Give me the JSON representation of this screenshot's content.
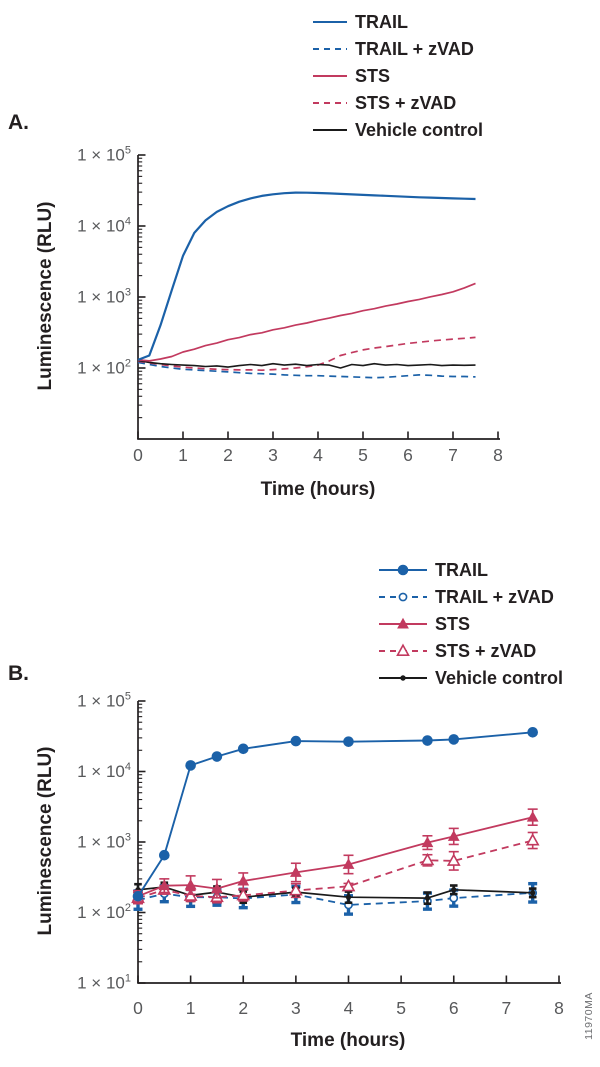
{
  "figure": {
    "panel_a_label": "A.",
    "panel_b_label": "B.",
    "watermark": "11970MA"
  },
  "colors": {
    "blue": "#1B61A8",
    "crimson": "#C23A5F",
    "black": "#1A1A1A",
    "axis": "#231f20",
    "tick_text": "#58595B"
  },
  "chart_data": [
    {
      "id": "A",
      "type": "line",
      "xlabel": "Time (hours)",
      "ylabel": "Luminescence (RLU)",
      "xlim": [
        0,
        8
      ],
      "ylim": [
        10,
        100000
      ],
      "x_ticks": [
        0,
        1,
        2,
        3,
        4,
        5,
        6,
        7,
        8
      ],
      "y_ticks": [
        {
          "base": "1 × 10",
          "exp": "5",
          "value": 100000
        },
        {
          "base": "1 × 10",
          "exp": "4",
          "value": 10000
        },
        {
          "base": "1 × 10",
          "exp": "3",
          "value": 1000
        },
        {
          "base": "1 × 10",
          "exp": "2",
          "value": 100
        }
      ],
      "legend": [
        {
          "label": "TRAIL",
          "color": "blue",
          "dash": false,
          "marker": "none"
        },
        {
          "label": "TRAIL + zVAD",
          "color": "blue",
          "dash": true,
          "marker": "none"
        },
        {
          "label": "STS",
          "color": "crimson",
          "dash": false,
          "marker": "none"
        },
        {
          "label": "STS + zVAD",
          "color": "crimson",
          "dash": true,
          "marker": "none"
        },
        {
          "label": "Vehicle control",
          "color": "black",
          "dash": false,
          "marker": "none"
        }
      ],
      "series": [
        {
          "name": "TRAIL + zVAD",
          "color": "blue",
          "dash": true,
          "lw": 1.7,
          "marker": "none",
          "x": [
            0,
            0.25,
            0.5,
            0.75,
            1,
            1.25,
            1.5,
            1.75,
            2,
            2.25,
            2.5,
            2.75,
            3,
            3.25,
            3.5,
            3.75,
            4,
            4.25,
            4.5,
            4.75,
            5,
            5.25,
            5.5,
            5.75,
            6,
            6.25,
            6.5,
            6.75,
            7,
            7.25,
            7.5
          ],
          "y": [
            120,
            112,
            105,
            100,
            96,
            94,
            92,
            90,
            88,
            86,
            84,
            83,
            82,
            80,
            79,
            78,
            78,
            77,
            76,
            75,
            74,
            73,
            74,
            76,
            78,
            80,
            79,
            77,
            76,
            76,
            75
          ]
        },
        {
          "name": "STS + zVAD",
          "color": "crimson",
          "dash": true,
          "lw": 1.7,
          "marker": "none",
          "x": [
            0,
            0.25,
            0.5,
            0.75,
            1,
            1.25,
            1.5,
            1.75,
            2,
            2.25,
            2.5,
            2.75,
            3,
            3.25,
            3.5,
            3.75,
            4,
            4.25,
            4.5,
            4.75,
            5,
            5.25,
            5.5,
            5.75,
            6,
            6.25,
            6.5,
            6.75,
            7,
            7.25,
            7.5
          ],
          "y": [
            125,
            118,
            112,
            107,
            103,
            100,
            98,
            96,
            95,
            94,
            94,
            93,
            95,
            97,
            100,
            104,
            110,
            126,
            150,
            165,
            180,
            191,
            200,
            211,
            222,
            231,
            240,
            248,
            255,
            262,
            270
          ]
        },
        {
          "name": "Vehicle control",
          "color": "black",
          "dash": false,
          "lw": 1.6,
          "marker": "none",
          "x": [
            0,
            0.25,
            0.5,
            0.75,
            1,
            1.25,
            1.5,
            1.75,
            2,
            2.25,
            2.5,
            2.75,
            3,
            3.25,
            3.5,
            3.75,
            4,
            4.25,
            4.5,
            4.75,
            5,
            5.25,
            5.5,
            5.75,
            6,
            6.25,
            6.5,
            6.75,
            7,
            7.25,
            7.5
          ],
          "y": [
            128,
            120,
            115,
            112,
            110,
            108,
            105,
            107,
            103,
            108,
            112,
            108,
            115,
            110,
            113,
            108,
            112,
            110,
            100,
            112,
            108,
            115,
            110,
            112,
            108,
            110,
            112,
            108,
            110,
            109,
            110
          ]
        },
        {
          "name": "STS",
          "color": "crimson",
          "dash": false,
          "lw": 1.7,
          "marker": "none",
          "x": [
            0,
            0.25,
            0.5,
            0.75,
            1,
            1.25,
            1.5,
            1.75,
            2,
            2.25,
            2.5,
            2.75,
            3,
            3.25,
            3.5,
            3.75,
            4,
            4.25,
            4.5,
            4.75,
            5,
            5.25,
            5.5,
            5.75,
            6,
            6.25,
            6.5,
            6.75,
            7,
            7.25,
            7.5
          ],
          "y": [
            130,
            126,
            134,
            145,
            168,
            184,
            207,
            224,
            250,
            268,
            295,
            313,
            345,
            368,
            402,
            430,
            470,
            505,
            549,
            587,
            641,
            685,
            745,
            798,
            865,
            925,
            1005,
            1085,
            1185,
            1345,
            1555
          ]
        },
        {
          "name": "TRAIL",
          "color": "blue",
          "dash": false,
          "lw": 2.2,
          "marker": "none",
          "x": [
            0,
            0.25,
            0.5,
            0.75,
            1,
            1.25,
            1.5,
            1.75,
            2,
            2.25,
            2.5,
            2.75,
            3,
            3.25,
            3.5,
            3.75,
            4,
            4.25,
            4.5,
            4.75,
            5,
            5.25,
            5.5,
            5.75,
            6,
            6.25,
            6.5,
            6.75,
            7,
            7.25,
            7.5
          ],
          "y": [
            130,
            150,
            400,
            1250,
            3800,
            8000,
            12000,
            15800,
            19000,
            22000,
            24500,
            26500,
            28000,
            29000,
            29500,
            29400,
            29200,
            28800,
            28300,
            27900,
            27400,
            27000,
            26600,
            26200,
            25800,
            25400,
            25100,
            24800,
            24500,
            24200,
            24000
          ]
        }
      ]
    },
    {
      "id": "B",
      "type": "line",
      "xlabel": "Time (hours)",
      "ylabel": "Luminescence (RLU)",
      "xlim": [
        0,
        8
      ],
      "ylim": [
        10,
        100000
      ],
      "x_ticks": [
        0,
        1,
        2,
        3,
        4,
        5,
        6,
        7,
        8
      ],
      "y_ticks": [
        {
          "base": "1 × 10",
          "exp": "5",
          "value": 100000
        },
        {
          "base": "1 × 10",
          "exp": "4",
          "value": 10000
        },
        {
          "base": "1 × 10",
          "exp": "3",
          "value": 1000
        },
        {
          "base": "1 × 10",
          "exp": "2",
          "value": 100
        },
        {
          "base": "1 × 10",
          "exp": "1",
          "value": 10
        }
      ],
      "legend": [
        {
          "label": "TRAIL",
          "color": "blue",
          "dash": false,
          "marker": "circle-filled"
        },
        {
          "label": "TRAIL + zVAD",
          "color": "blue",
          "dash": true,
          "marker": "circle-open"
        },
        {
          "label": "STS",
          "color": "crimson",
          "dash": false,
          "marker": "triangle-filled"
        },
        {
          "label": "STS + zVAD",
          "color": "crimson",
          "dash": true,
          "marker": "triangle-open"
        },
        {
          "label": "Vehicle control",
          "color": "black",
          "dash": false,
          "marker": "dot"
        }
      ],
      "series": [
        {
          "name": "TRAIL + zVAD",
          "color": "blue",
          "dash": true,
          "lw": 1.8,
          "marker": "circle-open",
          "err_lw": 3.4,
          "cap": 4.5,
          "x": [
            0,
            0.5,
            1,
            1.5,
            2,
            3,
            4,
            5.5,
            6,
            7.5
          ],
          "y": [
            150,
            185,
            165,
            165,
            158,
            180,
            128,
            145,
            160,
            190
          ],
          "err": [
            1.35,
            1.3,
            1.35,
            1.3,
            1.35,
            1.3,
            1.35,
            1.3,
            1.3,
            1.35
          ]
        },
        {
          "name": "Vehicle control",
          "color": "black",
          "dash": false,
          "lw": 1.7,
          "marker": "dot",
          "err_lw": 2.6,
          "cap": 3.8,
          "x": [
            0,
            0.5,
            1,
            1.5,
            2,
            3,
            4,
            5.5,
            6,
            7.5
          ],
          "y": [
            210,
            230,
            175,
            195,
            165,
            195,
            165,
            160,
            210,
            190
          ],
          "err": [
            1.2,
            1.15,
            1.2,
            1.2,
            1.2,
            1.15,
            1.2,
            1.2,
            1.15,
            1.15
          ]
        },
        {
          "name": "STS + zVAD",
          "color": "crimson",
          "dash": true,
          "lw": 1.8,
          "marker": "triangle-open",
          "err_lw": 1.6,
          "cap": 5,
          "x": [
            0,
            0.5,
            1,
            1.5,
            2,
            3,
            4,
            5.5,
            6,
            7.5
          ],
          "y": [
            160,
            210,
            172,
            165,
            175,
            205,
            235,
            550,
            540,
            1050
          ],
          "err": [
            1.2,
            1.15,
            1.2,
            1.2,
            1.2,
            1.25,
            1.1,
            1.2,
            1.35,
            1.3
          ]
        },
        {
          "name": "STS",
          "color": "crimson",
          "dash": false,
          "lw": 1.8,
          "marker": "triangle-filled",
          "err_lw": 1.6,
          "cap": 5,
          "x": [
            0,
            0.5,
            1,
            1.5,
            2,
            3,
            4,
            5.5,
            6,
            7.5
          ],
          "y": [
            170,
            240,
            245,
            218,
            280,
            370,
            480,
            980,
            1200,
            2250
          ],
          "err": [
            1.2,
            1.25,
            1.35,
            1.35,
            1.3,
            1.35,
            1.35,
            1.25,
            1.3,
            1.3
          ]
        },
        {
          "name": "TRAIL",
          "color": "blue",
          "dash": false,
          "lw": 1.9,
          "marker": "circle-filled",
          "err_lw": 1.6,
          "cap": 4,
          "x": [
            0,
            0.5,
            1,
            1.5,
            2,
            3,
            4,
            5.5,
            6,
            7.5
          ],
          "y": [
            170,
            650,
            12200,
            16300,
            21000,
            27000,
            26500,
            27500,
            28500,
            36000
          ],
          "err": [
            1,
            1,
            1,
            1,
            1,
            1,
            1,
            1,
            1,
            1
          ]
        }
      ]
    }
  ]
}
